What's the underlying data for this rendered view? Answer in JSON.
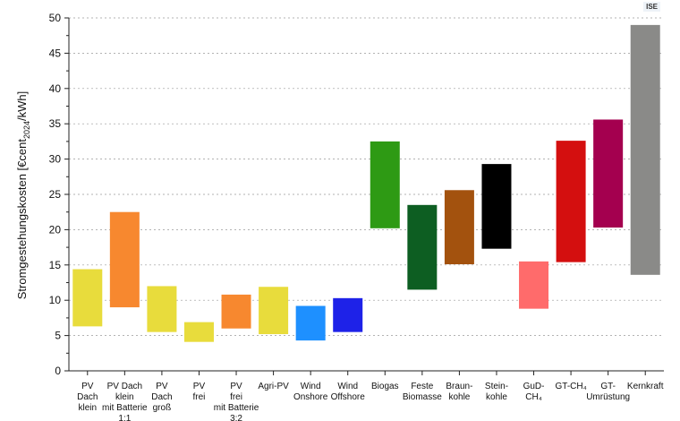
{
  "brand": "ISE",
  "chart_data": {
    "type": "bar",
    "subtype": "floating-range",
    "title": "",
    "xlabel": "",
    "ylabel": "Stromgestehungskosten [€cent",
    "ylabel_sub": "2024",
    "ylabel_tail": "/kWh]",
    "ylim": [
      0,
      50
    ],
    "yticks": [
      0,
      5,
      10,
      15,
      20,
      25,
      30,
      35,
      40,
      45,
      50
    ],
    "grid": true,
    "categories": [
      {
        "label": "PV Dach klein",
        "lines": [
          "PV",
          "Dach",
          "klein"
        ],
        "low": 6.3,
        "high": 14.4,
        "color": "#e8dc3c"
      },
      {
        "label": "PV Dach klein mit Batterie 1:1",
        "lines": [
          "PV Dach",
          "klein",
          "mit Batterie",
          "1:1"
        ],
        "low": 9.0,
        "high": 22.5,
        "color": "#f7882f"
      },
      {
        "label": "PV Dach groß",
        "lines": [
          "PV",
          "Dach",
          "groß"
        ],
        "low": 5.5,
        "high": 12.0,
        "color": "#e8dc3c"
      },
      {
        "label": "PV frei",
        "lines": [
          "PV",
          "frei"
        ],
        "low": 4.1,
        "high": 6.9,
        "color": "#e8dc3c"
      },
      {
        "label": "PV frei mit Batterie 3:2",
        "lines": [
          "PV",
          "frei",
          "mit Batterie",
          "3:2"
        ],
        "low": 6.0,
        "high": 10.8,
        "color": "#f7882f"
      },
      {
        "label": "Agri-PV",
        "lines": [
          "Agri-PV"
        ],
        "low": 5.2,
        "high": 11.9,
        "color": "#e8dc3c"
      },
      {
        "label": "Wind Onshore",
        "lines": [
          "Wind",
          "Onshore"
        ],
        "low": 4.3,
        "high": 9.2,
        "color": "#1e90ff"
      },
      {
        "label": "Wind Offshore",
        "lines": [
          "Wind",
          "Offshore"
        ],
        "low": 5.5,
        "high": 10.3,
        "color": "#1e22e8"
      },
      {
        "label": "Biogas",
        "lines": [
          "Biogas"
        ],
        "low": 20.2,
        "high": 32.5,
        "color": "#2e9a14"
      },
      {
        "label": "Feste Biomasse",
        "lines": [
          "Feste",
          "Biomasse"
        ],
        "low": 11.5,
        "high": 23.5,
        "color": "#0d5e22"
      },
      {
        "label": "Braunkohle",
        "lines": [
          "Braun-",
          "kohle"
        ],
        "low": 15.1,
        "high": 25.6,
        "color": "#a3520e"
      },
      {
        "label": "Steinkohle",
        "lines": [
          "Stein-",
          "kohle"
        ],
        "low": 17.3,
        "high": 29.3,
        "color": "#000000"
      },
      {
        "label": "GuD-CH4",
        "lines": [
          "GuD-",
          "CH₄"
        ],
        "low": 8.8,
        "high": 15.5,
        "color": "#ff6b6b"
      },
      {
        "label": "GT-CH4",
        "lines": [
          "GT-CH₄"
        ],
        "low": 15.4,
        "high": 32.6,
        "color": "#d40f0f"
      },
      {
        "label": "GT-Umrüstung",
        "lines": [
          "GT-",
          "Umrüstung"
        ],
        "low": 20.3,
        "high": 35.6,
        "color": "#a4004f"
      },
      {
        "label": "Kernkraft",
        "lines": [
          "Kernkraft"
        ],
        "low": 13.6,
        "high": 49.0,
        "color": "#8a8a88"
      }
    ]
  }
}
